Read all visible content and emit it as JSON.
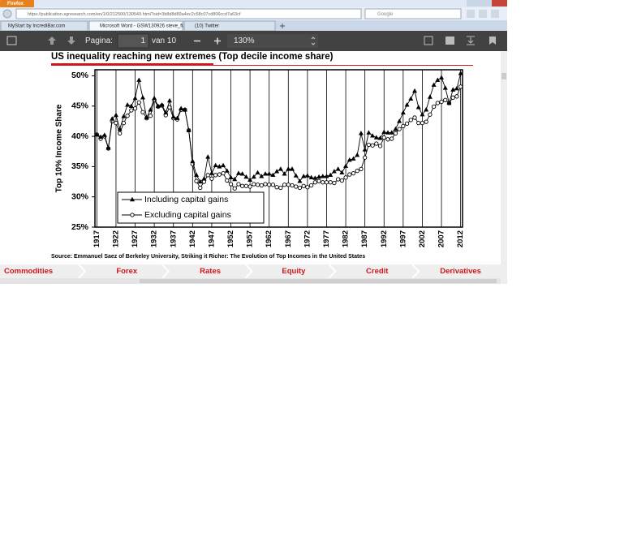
{
  "browser": {
    "menu_button": "Firefox",
    "url": "https://publication.sgresearch.com/en/1/0/212500/130549.html?sid=3b8d8d89a4ec2c58c07cd806ccd7a63cf",
    "search_placeholder": "Google",
    "tabs": [
      "MyStart by IncrediBar.com",
      "Microsoft Word - GSW130926 steve_fi...",
      "(10) Twitter"
    ]
  },
  "pdf_toolbar": {
    "page_label": "Pagina:",
    "page": 1,
    "page_count": "van 10",
    "zoom": "130%"
  },
  "chart_data": {
    "type": "line",
    "title": "US inequality reaching new extremes (Top decile income share)",
    "y_label": "Top 10% Income Share",
    "source": "Source: Emmanuel Saez of Berkeley University, Striking it Richer: The Evolution of Top Incomes in the United States",
    "x": [
      1917,
      1918,
      1919,
      1920,
      1921,
      1922,
      1923,
      1924,
      1925,
      1926,
      1927,
      1928,
      1929,
      1930,
      1931,
      1932,
      1933,
      1934,
      1935,
      1936,
      1937,
      1938,
      1939,
      1940,
      1941,
      1942,
      1943,
      1944,
      1945,
      1946,
      1947,
      1948,
      1949,
      1950,
      1951,
      1952,
      1953,
      1954,
      1955,
      1956,
      1957,
      1958,
      1959,
      1960,
      1961,
      1962,
      1963,
      1964,
      1965,
      1966,
      1967,
      1968,
      1969,
      1970,
      1971,
      1972,
      1973,
      1974,
      1975,
      1976,
      1977,
      1978,
      1979,
      1980,
      1981,
      1982,
      1983,
      1984,
      1985,
      1986,
      1987,
      1988,
      1989,
      1990,
      1991,
      1992,
      1993,
      1994,
      1995,
      1996,
      1997,
      1998,
      1999,
      2000,
      2001,
      2002,
      2003,
      2004,
      2005,
      2006,
      2007,
      2008,
      2009,
      2010,
      2011,
      2012
    ],
    "series": [
      {
        "name": "Including capital gains",
        "color": "#000000",
        "marker": "triangle",
        "values": [
          40.3,
          39.9,
          40.2,
          38.1,
          42.9,
          43.5,
          41.2,
          43.3,
          45.2,
          45.0,
          46.3,
          49.3,
          46.4,
          43.1,
          44.4,
          46.3,
          45.0,
          45.2,
          43.9,
          45.9,
          43.2,
          43.0,
          44.6,
          44.4,
          41.0,
          35.9,
          33.6,
          32.5,
          33.0,
          36.6,
          33.9,
          35.2,
          35.0,
          35.2,
          34.3,
          33.2,
          32.9,
          33.9,
          33.8,
          33.3,
          32.8,
          33.3,
          34.0,
          33.4,
          33.8,
          33.8,
          33.6,
          34.2,
          34.6,
          33.8,
          34.6,
          34.6,
          33.5,
          32.6,
          33.4,
          33.5,
          33.2,
          33.1,
          33.3,
          33.4,
          33.4,
          33.6,
          34.2,
          34.6,
          34.0,
          35.1,
          36.1,
          36.3,
          36.9,
          40.5,
          37.8,
          40.6,
          40.1,
          39.8,
          39.7,
          40.7,
          40.6,
          40.6,
          41.2,
          42.5,
          43.9,
          45.2,
          46.2,
          47.5,
          44.8,
          43.6,
          44.4,
          46.5,
          48.5,
          49.3,
          49.7,
          48.0,
          45.5,
          47.7,
          47.9,
          50.4
        ]
      },
      {
        "name": "Excluding capital gains",
        "color": "#000000",
        "marker": "circle",
        "values": [
          40.3,
          39.6,
          40.0,
          38.0,
          42.5,
          42.2,
          40.5,
          42.2,
          43.4,
          44.3,
          44.6,
          45.6,
          44.0,
          43.0,
          43.4,
          46.0,
          44.9,
          45.1,
          43.5,
          44.8,
          43.0,
          42.8,
          44.4,
          44.4,
          41.0,
          35.4,
          32.6,
          31.5,
          32.5,
          33.6,
          33.0,
          33.6,
          33.7,
          33.9,
          32.7,
          32.1,
          31.4,
          32.1,
          31.8,
          31.8,
          31.7,
          32.1,
          32.0,
          31.9,
          32.1,
          32.0,
          32.0,
          31.6,
          31.5,
          32.0,
          32.0,
          31.9,
          31.7,
          31.5,
          31.8,
          31.6,
          31.9,
          32.4,
          32.6,
          32.4,
          32.4,
          32.4,
          32.3,
          32.9,
          32.7,
          33.2,
          33.7,
          33.9,
          34.3,
          34.6,
          36.5,
          38.6,
          38.5,
          38.8,
          38.4,
          39.8,
          39.5,
          39.6,
          40.5,
          41.2,
          41.7,
          42.1,
          42.7,
          43.1,
          42.2,
          42.2,
          42.4,
          43.6,
          44.9,
          45.5,
          45.7,
          46.0,
          45.5,
          46.4,
          46.6,
          48.2
        ]
      }
    ],
    "xlim": [
      1916.5,
      2012.5
    ],
    "ylim": [
      25,
      51
    ],
    "xticks": [
      1917,
      1922,
      1927,
      1932,
      1937,
      1942,
      1947,
      1952,
      1957,
      1962,
      1967,
      1972,
      1977,
      1982,
      1987,
      1992,
      1997,
      2002,
      2007,
      2012
    ],
    "yticks": [
      {
        "value": 25,
        "label": "25%"
      },
      {
        "value": 30,
        "label": "30%"
      },
      {
        "value": 35,
        "label": "35%"
      },
      {
        "value": 40,
        "label": "40%"
      },
      {
        "value": 45,
        "label": "45%"
      },
      {
        "value": 50,
        "label": "50%"
      }
    ],
    "grid": "x",
    "legend": "lower left"
  },
  "navigation": [
    "Commodities",
    "Forex",
    "Rates",
    "Equity",
    "Credit",
    "Derivatives"
  ]
}
